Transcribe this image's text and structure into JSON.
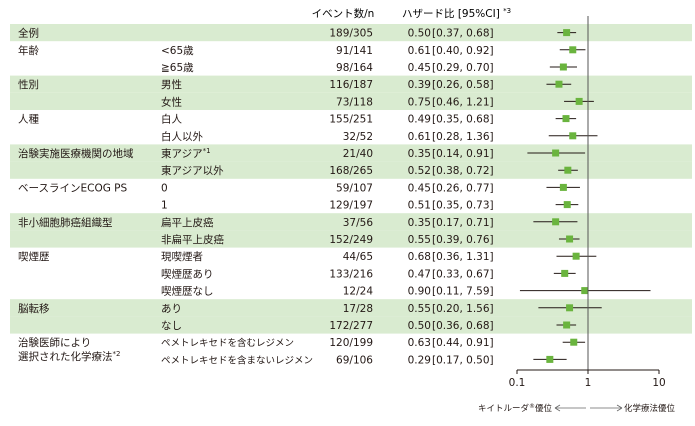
{
  "header": {
    "events_label": "イベント数/n",
    "hr_label": "ハザード比 [95%CI]",
    "hr_note": "*3"
  },
  "rows": [
    {
      "group": "全例",
      "sub": "",
      "events": "189/305",
      "hr": "0.50",
      "ci": "[0.37, 0.68]",
      "shaded": true
    },
    {
      "group": "年齢",
      "sub": "<65歳",
      "events": "91/141",
      "hr": "0.61",
      "ci": "[0.40, 0.92]",
      "shaded": false
    },
    {
      "group": "",
      "sub": "≧65歳",
      "events": "98/164",
      "hr": "0.45",
      "ci": "[0.29, 0.70]",
      "shaded": false
    },
    {
      "group": "性別",
      "sub": "男性",
      "events": "116/187",
      "hr": "0.39",
      "ci": "[0.26, 0.58]",
      "shaded": true
    },
    {
      "group": "",
      "sub": "女性",
      "events": "73/118",
      "hr": "0.75",
      "ci": "[0.46, 1.21]",
      "shaded": true
    },
    {
      "group": "人種",
      "sub": "白人",
      "events": "155/251",
      "hr": "0.49",
      "ci": "[0.35, 0.68]",
      "shaded": false
    },
    {
      "group": "",
      "sub": "白人以外",
      "events": "32/52",
      "hr": "0.61",
      "ci": "[0.28, 1.36]",
      "shaded": false
    },
    {
      "group": "治験実施医療機関の地域",
      "sub": "東アジア",
      "sub_note": "*1",
      "events": "21/40",
      "hr": "0.35",
      "ci": "[0.14, 0.91]",
      "shaded": true
    },
    {
      "group": "",
      "sub": "東アジア以外",
      "events": "168/265",
      "hr": "0.52",
      "ci": "[0.38, 0.72]",
      "shaded": true
    },
    {
      "group": "ベースラインECOG PS",
      "sub": "0",
      "events": "59/107",
      "hr": "0.45",
      "ci": "[0.26, 0.77]",
      "shaded": false
    },
    {
      "group": "",
      "sub": "1",
      "events": "129/197",
      "hr": "0.51",
      "ci": "[0.35, 0.73]",
      "shaded": false
    },
    {
      "group": "非小細胞肺癌組織型",
      "sub": "扁平上皮癌",
      "events": "37/56",
      "hr": "0.35",
      "ci": "[0.17, 0.71]",
      "shaded": true
    },
    {
      "group": "",
      "sub": "非扁平上皮癌",
      "events": "152/249",
      "hr": "0.55",
      "ci": "[0.39, 0.76]",
      "shaded": true
    },
    {
      "group": "喫煙歴",
      "sub": "現喫煙者",
      "events": "44/65",
      "hr": "0.68",
      "ci": "[0.36, 1.31]",
      "shaded": false
    },
    {
      "group": "",
      "sub": "喫煙歴あり",
      "events": "133/216",
      "hr": "0.47",
      "ci": "[0.33, 0.67]",
      "shaded": false
    },
    {
      "group": "",
      "sub": "喫煙歴なし",
      "events": "12/24",
      "hr": "0.90",
      "ci": "[0.11, 7.59]",
      "shaded": false
    },
    {
      "group": "脳転移",
      "sub": "あり",
      "events": "17/28",
      "hr": "0.55",
      "ci": "[0.20, 1.56]",
      "shaded": true
    },
    {
      "group": "",
      "sub": "なし",
      "events": "172/277",
      "hr": "0.50",
      "ci": "[0.36, 0.68]",
      "shaded": true
    },
    {
      "group": "治験医師により",
      "group_line2": "選択された化学療法",
      "group_note": "*2",
      "sub": "ペメトレキセドを含むレジメン",
      "events": "120/199",
      "hr": "0.63",
      "ci": "[0.44, 0.91]",
      "shaded": false
    },
    {
      "group": "",
      "sub": "ペメトレキセドを含まないレジメン",
      "events": "69/106",
      "hr": "0.29",
      "ci": "[0.17, 0.50]",
      "shaded": false
    }
  ],
  "chart_data": {
    "type": "scatter",
    "scale": "log",
    "xlim": [
      0.1,
      10
    ],
    "ticks": [
      0.1,
      1,
      10
    ],
    "tick_labels": [
      "0.1",
      "1",
      "10"
    ],
    "reference_line": 1,
    "points": [
      {
        "est": 0.5,
        "lo": 0.37,
        "hi": 0.68
      },
      {
        "est": 0.61,
        "lo": 0.4,
        "hi": 0.92
      },
      {
        "est": 0.45,
        "lo": 0.29,
        "hi": 0.7
      },
      {
        "est": 0.39,
        "lo": 0.26,
        "hi": 0.58
      },
      {
        "est": 0.75,
        "lo": 0.46,
        "hi": 1.21
      },
      {
        "est": 0.49,
        "lo": 0.35,
        "hi": 0.68
      },
      {
        "est": 0.61,
        "lo": 0.28,
        "hi": 1.36
      },
      {
        "est": 0.35,
        "lo": 0.14,
        "hi": 0.91
      },
      {
        "est": 0.52,
        "lo": 0.38,
        "hi": 0.72
      },
      {
        "est": 0.45,
        "lo": 0.26,
        "hi": 0.77
      },
      {
        "est": 0.51,
        "lo": 0.35,
        "hi": 0.73
      },
      {
        "est": 0.35,
        "lo": 0.17,
        "hi": 0.71
      },
      {
        "est": 0.55,
        "lo": 0.39,
        "hi": 0.76
      },
      {
        "est": 0.68,
        "lo": 0.36,
        "hi": 1.31
      },
      {
        "est": 0.47,
        "lo": 0.33,
        "hi": 0.67
      },
      {
        "est": 0.9,
        "lo": 0.11,
        "hi": 7.59
      },
      {
        "est": 0.55,
        "lo": 0.2,
        "hi": 1.56
      },
      {
        "est": 0.5,
        "lo": 0.36,
        "hi": 0.68
      },
      {
        "est": 0.63,
        "lo": 0.44,
        "hi": 0.91
      },
      {
        "est": 0.29,
        "lo": 0.17,
        "hi": 0.5
      }
    ],
    "favor_left": "キイトルーダ",
    "favor_left_mark": "®",
    "favor_left_suffix": "優位",
    "favor_right": "化学療法優位"
  },
  "colors": {
    "band": "#d9ebd0",
    "marker": "#6ab43e",
    "line": "#231815",
    "ref_line": "#555555"
  }
}
